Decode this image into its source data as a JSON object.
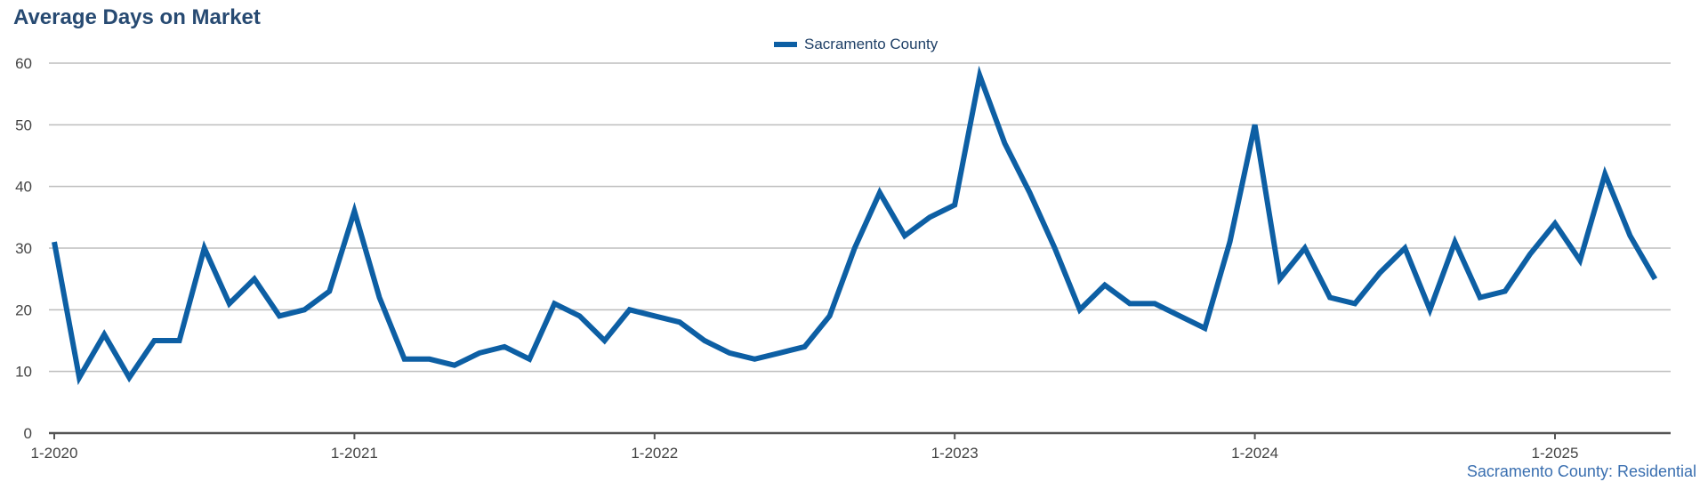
{
  "header": {
    "title": "Average Days on Market"
  },
  "legend": {
    "label": "Sacramento County"
  },
  "source": "Sacramento County: Residential",
  "colors": {
    "series": "#0d5fa4",
    "title": "#274a72",
    "grid": "#bdbdbd",
    "axis": "#555555"
  },
  "chart_data": {
    "type": "line",
    "title": "Average Days on Market",
    "xlabel": "",
    "ylabel": "",
    "ylim": [
      0,
      60
    ],
    "yticks": [
      0,
      10,
      20,
      30,
      40,
      50,
      60
    ],
    "xticks": [
      "1-2020",
      "1-2021",
      "1-2022",
      "1-2023",
      "1-2024",
      "1-2025"
    ],
    "grid": true,
    "legend_position": "top-center",
    "x_start": "1-2020",
    "series": [
      {
        "name": "Sacramento County",
        "values": [
          31,
          9,
          16,
          9,
          15,
          15,
          30,
          21,
          25,
          19,
          20,
          23,
          36,
          22,
          12,
          12,
          11,
          13,
          14,
          12,
          21,
          19,
          15,
          20,
          19,
          18,
          15,
          13,
          12,
          13,
          14,
          19,
          30,
          39,
          32,
          35,
          37,
          58,
          47,
          39,
          30,
          20,
          24,
          21,
          21,
          19,
          17,
          31,
          50,
          25,
          30,
          22,
          21,
          26,
          30,
          20,
          31,
          22,
          23,
          29,
          34,
          28,
          42,
          32,
          25
        ]
      }
    ]
  }
}
